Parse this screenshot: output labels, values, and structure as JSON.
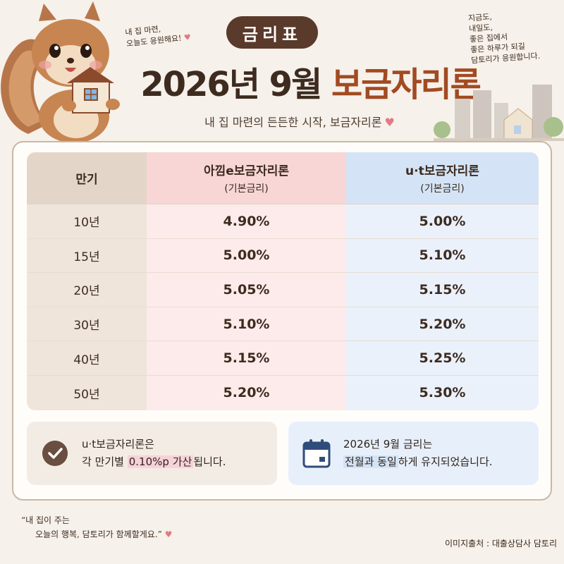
{
  "badge": "금리표",
  "title": {
    "part1": "2026년 9월",
    "part2": "보금자리론"
  },
  "subtitle": "내 집 마련의 든든한 시작, 보금자리론",
  "note_left": {
    "line1": "내 집 마련,",
    "line2": "오늘도 응원해요!"
  },
  "note_right": {
    "line1": "지금도,",
    "line2": "내일도,",
    "line3": "좋은 집에서",
    "line4": "좋은 하루가 되길",
    "line5": "담토리가 응원합니다."
  },
  "table": {
    "headers": {
      "term": "만기",
      "col1_name": "아낌e보금자리론",
      "col1_sub": "(기본금리)",
      "col2_name": "u·t보금자리론",
      "col2_sub": "(기본금리)"
    },
    "rows": [
      {
        "term": "10년",
        "col1": "4.90%",
        "col2": "5.00%"
      },
      {
        "term": "15년",
        "col1": "5.00%",
        "col2": "5.10%"
      },
      {
        "term": "20년",
        "col1": "5.05%",
        "col2": "5.15%"
      },
      {
        "term": "30년",
        "col1": "5.10%",
        "col2": "5.20%"
      },
      {
        "term": "40년",
        "col1": "5.15%",
        "col2": "5.25%"
      },
      {
        "term": "50년",
        "col1": "5.20%",
        "col2": "5.30%"
      }
    ]
  },
  "info_left": {
    "line1": "u·t보금자리론은",
    "line2_pre": "각 만기별 ",
    "line2_hl": "0.10%p 가산",
    "line2_post": "됩니다."
  },
  "info_right": {
    "line1": "2026년 9월 금리는",
    "line2_hl": "전월과 동일",
    "line2_post": "하게 유지되었습니다."
  },
  "quote": {
    "line1": "“내 집이 주는",
    "line2": "오늘의 행복, 담토리가 함께할게요.”"
  },
  "source": "이미지출처 : 대출상담사 담토리",
  "colors": {
    "brown": "#5a3a2b",
    "accent": "#a24a22",
    "pink": "#f8d6d6",
    "blue": "#d4e4f6",
    "heart": "#e07a84"
  },
  "icons": [
    "squirrel-house-illustration",
    "check-icon",
    "calendar-icon",
    "heart-icon",
    "city-icon"
  ]
}
